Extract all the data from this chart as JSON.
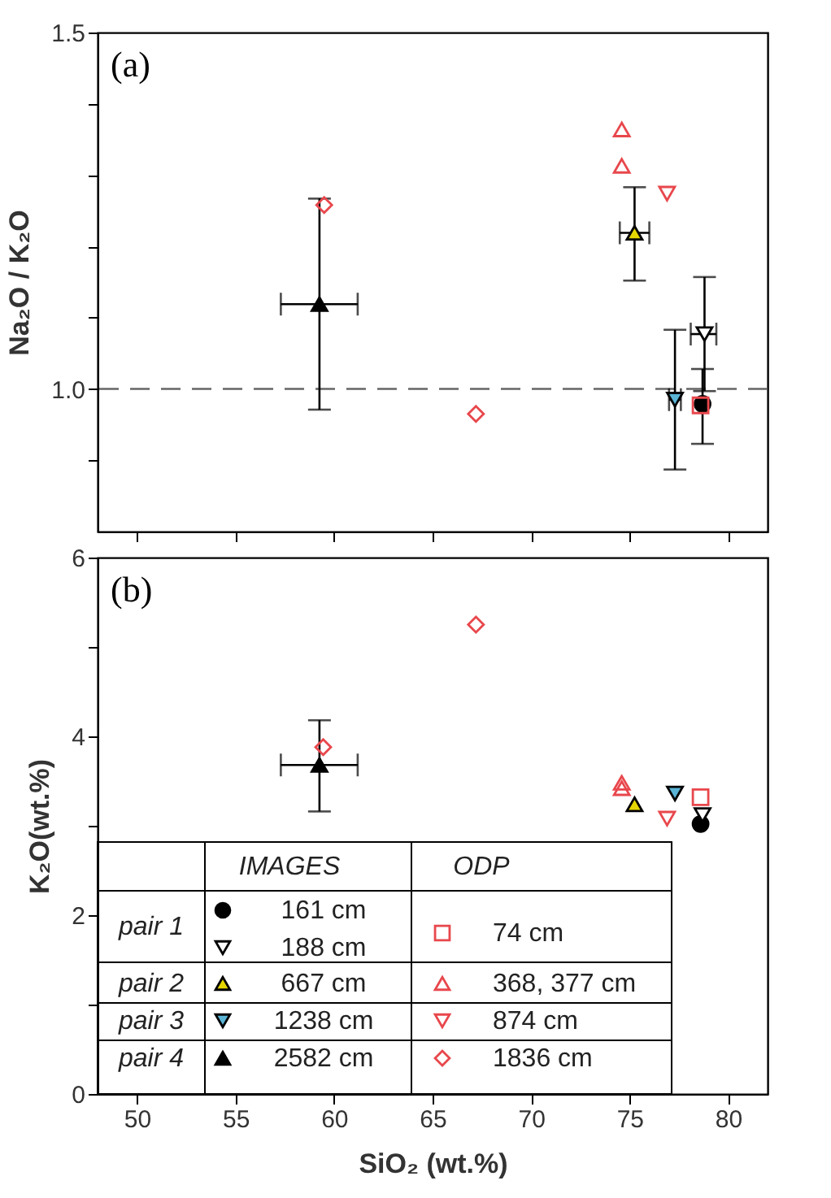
{
  "chart_data": [
    {
      "type": "scatter",
      "ylabel": "Na₂O / K₂O",
      "xlim": [
        48,
        82
      ],
      "ylim": [
        0.8,
        1.5
      ],
      "xticks": [
        50,
        55,
        60,
        65,
        70,
        75,
        80
      ],
      "yticks": [
        {
          "value": 0.9,
          "label": null
        },
        {
          "value": 1.0,
          "label": "1.0"
        },
        {
          "value": 1.1,
          "label": null
        },
        {
          "value": 1.2,
          "label": null
        },
        {
          "value": 1.3,
          "label": null
        },
        {
          "value": 1.4,
          "label": null
        },
        1.5
      ],
      "tick_labels": "y",
      "grid": false,
      "annotations": [
        "(a)"
      ],
      "ref_lines": [
        {
          "axis": "y",
          "value": 1.0,
          "label": null,
          "color": "#666666",
          "line_style": "dashed"
        }
      ],
      "series": [
        {
          "color": "#000000",
          "marker": "circle",
          "x": [
            78.7
          ],
          "values": [
            0.979
          ],
          "errors": [
            [
              0.923,
              1.028
            ]
          ]
        },
        {
          "color": "#ffffff",
          "marker": "triangle-down",
          "x": [
            78.8
          ],
          "values": [
            1.077
          ],
          "errors": [
            [
              0.997,
              1.157
            ]
          ],
          "xerrors": [
            [
              78.1,
              79.4
            ]
          ]
        },
        {
          "color": "#e6d600",
          "marker": "triangle",
          "x": [
            75.25
          ],
          "values": [
            1.219
          ],
          "errors": [
            [
              1.152,
              1.283
            ]
          ],
          "xerrors": [
            [
              74.5,
              76.0
            ]
          ]
        },
        {
          "color": "#5ab4d6",
          "marker": "triangle-down",
          "x": [
            77.3
          ],
          "values": [
            0.985
          ],
          "errors": [
            [
              0.887,
              1.083
            ]
          ],
          "xerrors": [
            [
              77.0,
              77.6
            ]
          ]
        },
        {
          "color": "#000000",
          "marker": "triangle",
          "x": [
            59.26
          ],
          "values": [
            1.119
          ],
          "errors": [
            [
              0.971,
              1.267
            ]
          ],
          "xerrors": [
            [
              57.3,
              61.2
            ]
          ]
        },
        {
          "color": "#e8474c",
          "marker": "square",
          "x": [
            78.6
          ],
          "values": [
            0.977
          ]
        },
        {
          "color": "#e8474c",
          "marker": "triangle",
          "x": [
            74.6,
            74.6
          ],
          "values": [
            1.364,
            1.313
          ]
        },
        {
          "color": "#e8474c",
          "marker": "triangle-down",
          "x": [
            76.9
          ],
          "values": [
            1.274
          ]
        },
        {
          "color": "#e8474c",
          "marker": "diamond",
          "x": [
            59.5,
            67.2
          ],
          "values": [
            1.258,
            0.965
          ]
        }
      ]
    },
    {
      "type": "scatter",
      "xlabel": "SiO₂ (wt.%)",
      "ylabel": "K₂O(wt.%)",
      "xlim": [
        48,
        82
      ],
      "ylim": [
        0,
        6
      ],
      "xticks": [
        50,
        55,
        60,
        65,
        70,
        75,
        80
      ],
      "yticks": [
        0,
        {
          "value": 1,
          "label": null
        },
        2,
        {
          "value": 3,
          "label": null
        },
        4,
        {
          "value": 5,
          "label": null
        },
        6
      ],
      "grid": false,
      "legend": "bottom left",
      "annotations": [
        "(b)",
        "IMAGES",
        "ODP",
        "pair 1",
        "pair 2",
        "pair 3",
        "pair 4"
      ],
      "series": [
        {
          "name": "161 cm",
          "color": "#000000",
          "marker": "circle",
          "x": [
            78.6
          ],
          "values": [
            3.02
          ]
        },
        {
          "name": "188 cm",
          "color": "#ffffff",
          "marker": "triangle-down",
          "x": [
            78.7
          ],
          "values": [
            3.12
          ]
        },
        {
          "name": "667 cm",
          "color": "#e6d600",
          "marker": "triangle",
          "x": [
            75.25
          ],
          "values": [
            3.24
          ]
        },
        {
          "name": "1238 cm",
          "color": "#5ab4d6",
          "marker": "triangle-down",
          "x": [
            77.3
          ],
          "values": [
            3.36
          ]
        },
        {
          "name": "2582 cm",
          "color": "#000000",
          "marker": "triangle",
          "x": [
            59.26
          ],
          "values": [
            3.68
          ],
          "errors": [
            [
              3.16,
              4.18
            ]
          ],
          "xerrors": [
            [
              57.3,
              61.2
            ]
          ]
        },
        {
          "name": "74 cm",
          "color": "#e8474c",
          "marker": "square",
          "x": [
            78.6
          ],
          "values": [
            3.32
          ]
        },
        {
          "name": "368, 377 cm",
          "color": "#e8474c",
          "marker": "triangle",
          "x": [
            74.6,
            74.6
          ],
          "values": [
            3.48,
            3.42
          ]
        },
        {
          "name": "874 cm",
          "color": "#e8474c",
          "marker": "triangle-down",
          "x": [
            76.9
          ],
          "values": [
            3.08
          ]
        },
        {
          "name": "1836 cm",
          "color": "#e8474c",
          "marker": "diamond",
          "x": [
            59.45,
            67.2
          ],
          "values": [
            3.88,
            5.25
          ]
        }
      ]
    }
  ]
}
